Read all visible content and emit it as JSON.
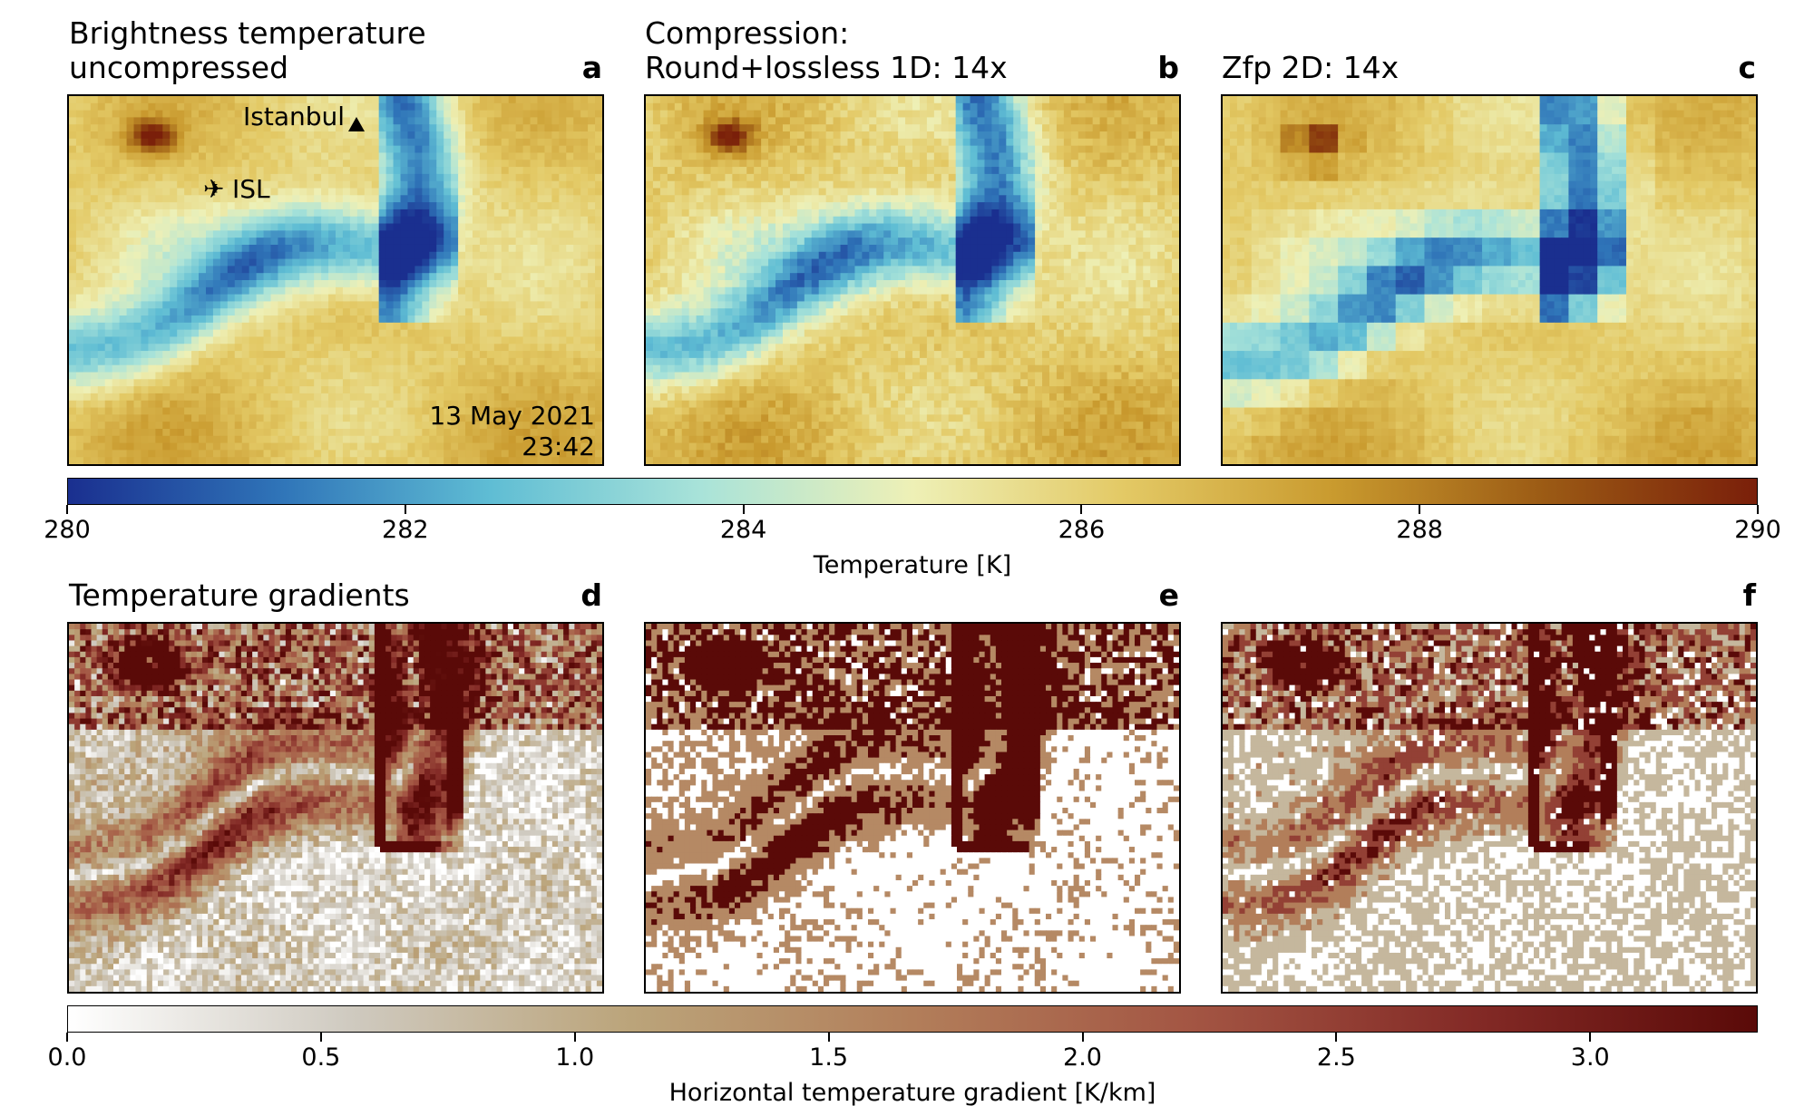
{
  "panels_top": [
    {
      "title": "Brightness temperature\nuncompressed",
      "letter": "a"
    },
    {
      "title": "Compression:\nRound+lossless 1D: 14x",
      "letter": "b"
    },
    {
      "title": "Zfp 2D: 14x",
      "letter": "c"
    }
  ],
  "panels_bottom": [
    {
      "title": "Temperature gradients",
      "letter": "d"
    },
    {
      "title": "",
      "letter": "e"
    },
    {
      "title": "",
      "letter": "f"
    }
  ],
  "annotations": {
    "city_label": "Istanbul",
    "city_marker_icon": "triangle-marker-icon",
    "airport_icon": "airplane-icon",
    "airport_label": "ISL",
    "date": "13 May 2021",
    "time": "23:42"
  },
  "colorbar_temperature": {
    "label": "Temperature [K]",
    "ticks": [
      "280",
      "282",
      "284",
      "286",
      "288",
      "290"
    ],
    "range": [
      280,
      290
    ],
    "colors": [
      "#1a2f8f",
      "#2f74b8",
      "#5fbdd4",
      "#a9e3d9",
      "#eef0b6",
      "#e3c965",
      "#c99a2e",
      "#9b5a14",
      "#7a1f0a"
    ]
  },
  "colorbar_gradient": {
    "label": "Horizontal temperature gradient [K/km]",
    "ticks": [
      "0.0",
      "0.5",
      "1.0",
      "1.5",
      "2.0",
      "2.5",
      "3.0"
    ],
    "range": [
      0.0,
      3.33
    ],
    "colors": [
      "#ffffff",
      "#cfcac0",
      "#bba47a",
      "#b27e5a",
      "#a35543",
      "#832a26",
      "#5a0a08"
    ]
  },
  "chart_data": [
    {
      "type": "heatmap",
      "panel": "a",
      "title": "Brightness temperature uncompressed",
      "colorbar": "Temperature [K]",
      "vmin": 280,
      "vmax": 290
    },
    {
      "type": "heatmap",
      "panel": "b",
      "title": "Compression: Round+lossless 1D: 14x",
      "colorbar": "Temperature [K]",
      "vmin": 280,
      "vmax": 290
    },
    {
      "type": "heatmap",
      "panel": "c",
      "title": "Zfp 2D: 14x",
      "colorbar": "Temperature [K]",
      "vmin": 280,
      "vmax": 290
    },
    {
      "type": "heatmap",
      "panel": "d",
      "title": "Temperature gradients",
      "colorbar": "Horizontal temperature gradient [K/km]",
      "vmin": 0.0,
      "vmax": 3.33
    },
    {
      "type": "heatmap",
      "panel": "e",
      "title": "",
      "colorbar": "Horizontal temperature gradient [K/km]",
      "vmin": 0.0,
      "vmax": 3.33
    },
    {
      "type": "heatmap",
      "panel": "f",
      "title": "",
      "colorbar": "Horizontal temperature gradient [K/km]",
      "vmin": 0.0,
      "vmax": 3.33
    }
  ]
}
